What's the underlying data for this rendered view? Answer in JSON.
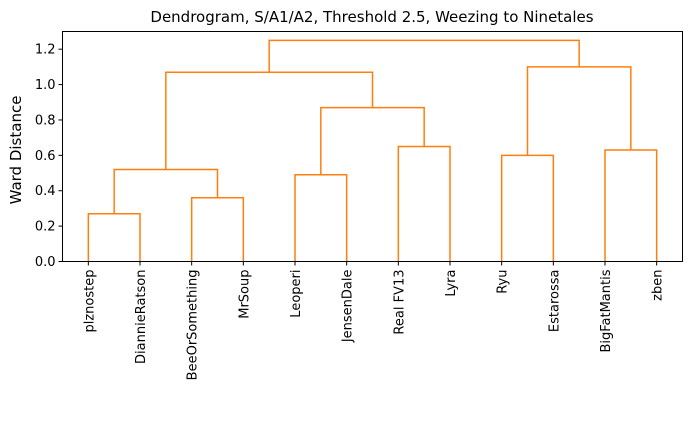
{
  "chart_data": {
    "type": "dendrogram",
    "title": "Dendrogram, S/A1/A2, Threshold 2.5, Weezing to Ninetales",
    "xlabel": "",
    "ylabel": "Ward Distance",
    "ylim": [
      0,
      1.3
    ],
    "yticks": [
      "0.0",
      "0.2",
      "0.4",
      "0.6",
      "0.8",
      "1.0",
      "1.2"
    ],
    "ytick_values": [
      0,
      0.2,
      0.4,
      0.6,
      0.8,
      1.0,
      1.2
    ],
    "leaves": [
      "plznostep",
      "DiannieRatson",
      "BeeOrSomething",
      "MrSoup",
      "Leoperi",
      "JensenDale",
      "Real FV13",
      "Lyra",
      "Ryu",
      "Estarossa",
      "BigFatMantis",
      "zben"
    ],
    "link_color": "#ff7f0e",
    "merges": [
      {
        "left": "plznostep",
        "right": "DiannieRatson",
        "height": 0.27
      },
      {
        "left": "BeeOrSomething",
        "right": "MrSoup",
        "height": 0.36
      },
      {
        "left": "Leoperi",
        "right": "JensenDale",
        "height": 0.49
      },
      {
        "left": "plznostep+DiannieRatson",
        "right": "BeeOrSomething+MrSoup",
        "height": 0.52
      },
      {
        "left": "Ryu",
        "right": "Estarossa",
        "height": 0.6
      },
      {
        "left": "BigFatMantis",
        "right": "zben",
        "height": 0.63
      },
      {
        "left": "Real FV13",
        "right": "Lyra",
        "height": 0.65
      },
      {
        "left": "Leoperi+JensenDale",
        "right": "Real FV13+Lyra",
        "height": 0.87
      },
      {
        "left": "plznostep..MrSoup",
        "right": "Leoperi..Lyra",
        "height": 1.07
      },
      {
        "left": "Ryu+Estarossa",
        "right": "BigFatMantis+zben",
        "height": 1.1
      },
      {
        "left": "plznostep..Lyra",
        "right": "Ryu..zben",
        "height": 1.25
      }
    ]
  }
}
